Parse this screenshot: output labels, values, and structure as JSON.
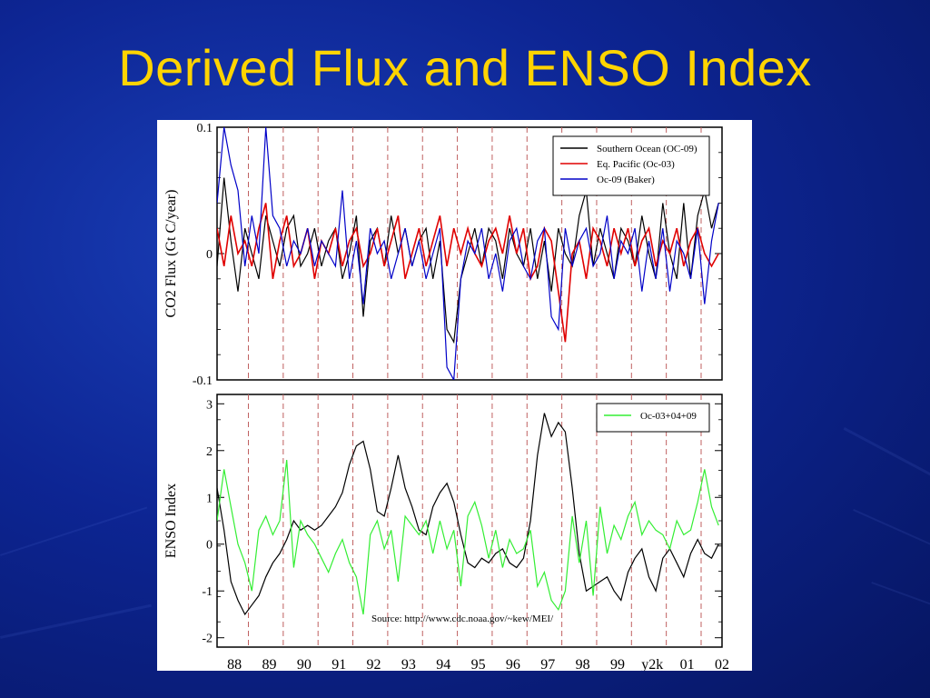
{
  "slide": {
    "title": "Derived Flux and ENSO Index"
  },
  "colors": {
    "title": "#ffd400",
    "background": "#0d2593",
    "southern_ocean": "#000000",
    "eq_pacific": "#e00000",
    "baker": "#0000c8",
    "oc_combined": "#33ee33",
    "enso": "#000000",
    "year_marker": "#c06060"
  },
  "chart_data": [
    {
      "type": "line",
      "ylabel": "CO2 Flux (Gt C/year)",
      "ylim": [
        -0.1,
        0.1
      ],
      "xlim": [
        1987.5,
        2002.0
      ],
      "yticks": [
        {
          "v": 0.1,
          "label": "0.1"
        },
        {
          "v": 0,
          "label": "0"
        },
        {
          "v": -0.1,
          "label": "-0.1"
        }
      ],
      "legend_position": "top-right",
      "year_markers": [
        1988.4,
        1989.4,
        1990.4,
        1991.4,
        1992.4,
        1993.4,
        1994.4,
        1995.4,
        1996.4,
        1997.4,
        1998.4,
        1999.4,
        2000.4,
        2001.4
      ],
      "series": [
        {
          "name": "Southern Ocean (OC-09)",
          "color": "#000000",
          "x": [
            1987.5,
            1987.7,
            1987.9,
            1988.1,
            1988.3,
            1988.5,
            1988.7,
            1988.9,
            1989.1,
            1989.3,
            1989.5,
            1989.7,
            1989.9,
            1990.1,
            1990.3,
            1990.5,
            1990.7,
            1990.9,
            1991.1,
            1991.3,
            1991.5,
            1991.7,
            1991.9,
            1992.1,
            1992.3,
            1992.5,
            1992.7,
            1992.9,
            1993.1,
            1993.3,
            1993.5,
            1993.7,
            1993.9,
            1994.1,
            1994.3,
            1994.5,
            1994.7,
            1994.9,
            1995.1,
            1995.3,
            1995.5,
            1995.7,
            1995.9,
            1996.1,
            1996.3,
            1996.5,
            1996.7,
            1996.9,
            1997.1,
            1997.3,
            1997.5,
            1997.7,
            1997.9,
            1998.1,
            1998.3,
            1998.5,
            1998.7,
            1998.9,
            1999.1,
            1999.3,
            1999.5,
            1999.7,
            1999.9,
            2000.1,
            2000.3,
            2000.5,
            2000.7,
            2000.9,
            2001.1,
            2001.3,
            2001.5,
            2001.7,
            2001.9
          ],
          "values": [
            -0.01,
            0.06,
            0.01,
            -0.03,
            0.02,
            0.0,
            -0.02,
            0.03,
            0.01,
            -0.01,
            0.02,
            0.03,
            -0.01,
            0.0,
            0.02,
            -0.01,
            0.01,
            0.02,
            -0.02,
            0.0,
            0.03,
            -0.05,
            0.01,
            0.02,
            -0.01,
            0.03,
            0.0,
            0.02,
            -0.01,
            0.01,
            0.02,
            -0.02,
            0.01,
            -0.06,
            -0.07,
            -0.02,
            0.0,
            0.02,
            -0.01,
            0.02,
            0.01,
            -0.02,
            0.02,
            0.0,
            -0.01,
            0.02,
            -0.02,
            0.01,
            -0.03,
            0.02,
            0.0,
            -0.01,
            0.03,
            0.05,
            -0.01,
            0.02,
            0.0,
            -0.02,
            0.02,
            0.01,
            -0.01,
            0.03,
            0.0,
            -0.02,
            0.04,
            0.0,
            -0.02,
            0.04,
            -0.02,
            0.03,
            0.05,
            0.02,
            0.04
          ]
        },
        {
          "name": "Eq. Pacific (Oc-03)",
          "color": "#e00000",
          "x": [
            1987.5,
            1987.7,
            1987.9,
            1988.1,
            1988.3,
            1988.5,
            1988.7,
            1988.9,
            1989.1,
            1989.3,
            1989.5,
            1989.7,
            1989.9,
            1990.1,
            1990.3,
            1990.5,
            1990.7,
            1990.9,
            1991.1,
            1991.3,
            1991.5,
            1991.7,
            1991.9,
            1992.1,
            1992.3,
            1992.5,
            1992.7,
            1992.9,
            1993.1,
            1993.3,
            1993.5,
            1993.7,
            1993.9,
            1994.1,
            1994.3,
            1994.5,
            1994.7,
            1994.9,
            1995.1,
            1995.3,
            1995.5,
            1995.7,
            1995.9,
            1996.1,
            1996.3,
            1996.5,
            1996.7,
            1996.9,
            1997.1,
            1997.3,
            1997.5,
            1997.7,
            1997.9,
            1998.1,
            1998.3,
            1998.5,
            1998.7,
            1998.9,
            1999.1,
            1999.3,
            1999.5,
            1999.7,
            1999.9,
            2000.1,
            2000.3,
            2000.5,
            2000.7,
            2000.9,
            2001.1,
            2001.3,
            2001.5,
            2001.7,
            2001.9
          ],
          "values": [
            0.02,
            -0.01,
            0.03,
            0.0,
            0.01,
            -0.01,
            0.02,
            0.04,
            -0.02,
            0.01,
            0.03,
            -0.01,
            0.0,
            0.02,
            -0.02,
            0.01,
            0.0,
            0.02,
            -0.01,
            0.01,
            0.02,
            -0.01,
            0.0,
            0.02,
            -0.01,
            0.01,
            0.03,
            -0.02,
            0.0,
            0.02,
            -0.01,
            0.01,
            0.03,
            -0.01,
            0.02,
            0.0,
            0.02,
            0.0,
            -0.01,
            0.01,
            0.02,
            0.0,
            0.03,
            0.0,
            0.02,
            -0.02,
            -0.01,
            0.02,
            0.01,
            -0.03,
            -0.07,
            0.0,
            0.01,
            -0.02,
            0.02,
            0.01,
            -0.01,
            0.02,
            0.0,
            0.02,
            -0.01,
            0.01,
            0.02,
            -0.01,
            0.01,
            0.0,
            0.02,
            -0.01,
            0.01,
            0.02,
            0.0,
            -0.01,
            0.0
          ]
        },
        {
          "name": "Oc-09 (Baker)",
          "color": "#0000c8",
          "x": [
            1987.5,
            1987.7,
            1987.9,
            1988.1,
            1988.3,
            1988.5,
            1988.7,
            1988.9,
            1989.1,
            1989.3,
            1989.5,
            1989.7,
            1989.9,
            1990.1,
            1990.3,
            1990.5,
            1990.7,
            1990.9,
            1991.1,
            1991.3,
            1991.5,
            1991.7,
            1991.9,
            1992.1,
            1992.3,
            1992.5,
            1992.7,
            1992.9,
            1993.1,
            1993.3,
            1993.5,
            1993.7,
            1993.9,
            1994.1,
            1994.3,
            1994.5,
            1994.7,
            1994.9,
            1995.1,
            1995.3,
            1995.5,
            1995.7,
            1995.9,
            1996.1,
            1996.3,
            1996.5,
            1996.7,
            1996.9,
            1997.1,
            1997.3,
            1997.5,
            1997.7,
            1997.9,
            1998.1,
            1998.3,
            1998.5,
            1998.7,
            1998.9,
            1999.1,
            1999.3,
            1999.5,
            1999.7,
            1999.9,
            2000.1,
            2000.3,
            2000.5,
            2000.7,
            2000.9,
            2001.1,
            2001.3,
            2001.5,
            2001.7,
            2001.9
          ],
          "values": [
            0.04,
            0.1,
            0.07,
            0.05,
            -0.01,
            0.03,
            0.0,
            0.1,
            0.03,
            0.02,
            -0.01,
            0.01,
            0.0,
            0.02,
            -0.01,
            0.01,
            0.0,
            -0.01,
            0.05,
            -0.02,
            0.01,
            -0.04,
            0.02,
            0.0,
            0.01,
            -0.02,
            0.0,
            0.02,
            -0.01,
            0.01,
            -0.02,
            0.0,
            0.02,
            -0.09,
            -0.1,
            -0.02,
            0.01,
            0.0,
            0.02,
            -0.02,
            0.0,
            -0.03,
            0.01,
            0.02,
            -0.01,
            -0.02,
            0.01,
            0.02,
            -0.05,
            -0.06,
            0.02,
            -0.01,
            0.01,
            0.02,
            -0.01,
            0.0,
            0.03,
            -0.02,
            0.01,
            0.0,
            0.02,
            -0.03,
            0.01,
            -0.02,
            0.02,
            -0.03,
            0.01,
            0.0,
            -0.02,
            0.02,
            -0.04,
            0.01,
            0.04
          ]
        }
      ]
    },
    {
      "type": "line",
      "ylabel": "ENSO Index",
      "ylim": [
        -2.2,
        3.2
      ],
      "xlim": [
        1987.5,
        2002.0
      ],
      "yticks": [
        {
          "v": 3,
          "label": "3"
        },
        {
          "v": 2,
          "label": "2"
        },
        {
          "v": 1,
          "label": "1"
        },
        {
          "v": 0,
          "label": "0"
        },
        {
          "v": -1,
          "label": "-1"
        },
        {
          "v": -2,
          "label": "-2"
        }
      ],
      "xticks": [
        {
          "v": 1988,
          "label": "88"
        },
        {
          "v": 1989,
          "label": "89"
        },
        {
          "v": 1990,
          "label": "90"
        },
        {
          "v": 1991,
          "label": "91"
        },
        {
          "v": 1992,
          "label": "92"
        },
        {
          "v": 1993,
          "label": "93"
        },
        {
          "v": 1994,
          "label": "94"
        },
        {
          "v": 1995,
          "label": "95"
        },
        {
          "v": 1996,
          "label": "96"
        },
        {
          "v": 1997,
          "label": "97"
        },
        {
          "v": 1998,
          "label": "98"
        },
        {
          "v": 1999,
          "label": "99"
        },
        {
          "v": 2000,
          "label": "y2k"
        },
        {
          "v": 2001,
          "label": "01"
        },
        {
          "v": 2002,
          "label": "02"
        }
      ],
      "legend_position": "top-right",
      "annotation": "Source: http://www.cdc.noaa.gov/~kew/MEI/",
      "year_markers": [
        1988.4,
        1989.4,
        1990.4,
        1991.4,
        1992.4,
        1993.4,
        1994.4,
        1995.4,
        1996.4,
        1997.4,
        1998.4,
        1999.4,
        2000.4,
        2001.4
      ],
      "series": [
        {
          "name": "",
          "color": "#000000",
          "x": [
            1987.5,
            1987.7,
            1987.9,
            1988.1,
            1988.3,
            1988.5,
            1988.7,
            1988.9,
            1989.1,
            1989.3,
            1989.5,
            1989.7,
            1989.9,
            1990.1,
            1990.3,
            1990.5,
            1990.7,
            1990.9,
            1991.1,
            1991.3,
            1991.5,
            1991.7,
            1991.9,
            1992.1,
            1992.3,
            1992.5,
            1992.7,
            1992.9,
            1993.1,
            1993.3,
            1993.5,
            1993.7,
            1993.9,
            1994.1,
            1994.3,
            1994.5,
            1994.7,
            1994.9,
            1995.1,
            1995.3,
            1995.5,
            1995.7,
            1995.9,
            1996.1,
            1996.3,
            1996.5,
            1996.7,
            1996.9,
            1997.1,
            1997.3,
            1997.5,
            1997.7,
            1997.9,
            1998.1,
            1998.3,
            1998.5,
            1998.7,
            1998.9,
            1999.1,
            1999.3,
            1999.5,
            1999.7,
            1999.9,
            2000.1,
            2000.3,
            2000.5,
            2000.7,
            2000.9,
            2001.1,
            2001.3,
            2001.5,
            2001.7,
            2001.9
          ],
          "values": [
            1.2,
            0.3,
            -0.8,
            -1.2,
            -1.5,
            -1.3,
            -1.1,
            -0.7,
            -0.4,
            -0.2,
            0.1,
            0.5,
            0.3,
            0.4,
            0.3,
            0.4,
            0.6,
            0.8,
            1.1,
            1.7,
            2.1,
            2.2,
            1.6,
            0.7,
            0.6,
            1.2,
            1.9,
            1.2,
            0.8,
            0.3,
            0.2,
            0.8,
            1.1,
            1.3,
            0.9,
            0.2,
            -0.4,
            -0.5,
            -0.3,
            -0.4,
            -0.2,
            -0.1,
            -0.4,
            -0.5,
            -0.3,
            0.5,
            1.9,
            2.8,
            2.3,
            2.6,
            2.4,
            1.2,
            -0.2,
            -1.0,
            -0.9,
            -0.8,
            -0.7,
            -1.0,
            -1.2,
            -0.6,
            -0.3,
            -0.1,
            -0.7,
            -1.0,
            -0.3,
            -0.1,
            -0.4,
            -0.7,
            -0.2,
            0.1,
            -0.2,
            -0.3,
            0.0
          ]
        },
        {
          "name": "Oc-03+04+09",
          "color": "#33ee33",
          "x": [
            1987.5,
            1987.7,
            1987.9,
            1988.1,
            1988.3,
            1988.5,
            1988.7,
            1988.9,
            1989.1,
            1989.3,
            1989.5,
            1989.7,
            1989.9,
            1990.1,
            1990.3,
            1990.5,
            1990.7,
            1990.9,
            1991.1,
            1991.3,
            1991.5,
            1991.7,
            1991.9,
            1992.1,
            1992.3,
            1992.5,
            1992.7,
            1992.9,
            1993.1,
            1993.3,
            1993.5,
            1993.7,
            1993.9,
            1994.1,
            1994.3,
            1994.5,
            1994.7,
            1994.9,
            1995.1,
            1995.3,
            1995.5,
            1995.7,
            1995.9,
            1996.1,
            1996.3,
            1996.5,
            1996.7,
            1996.9,
            1997.1,
            1997.3,
            1997.5,
            1997.7,
            1997.9,
            1998.1,
            1998.3,
            1998.5,
            1998.7,
            1998.9,
            1999.1,
            1999.3,
            1999.5,
            1999.7,
            1999.9,
            2000.1,
            2000.3,
            2000.5,
            2000.7,
            2000.9,
            2001.1,
            2001.3,
            2001.5,
            2001.7,
            2001.9
          ],
          "values": [
            0.5,
            1.6,
            0.8,
            0.0,
            -0.4,
            -1.0,
            0.3,
            0.6,
            0.2,
            0.5,
            1.8,
            -0.5,
            0.5,
            0.2,
            0.0,
            -0.3,
            -0.6,
            -0.2,
            0.1,
            -0.4,
            -0.7,
            -1.5,
            0.2,
            0.5,
            -0.1,
            0.3,
            -0.8,
            0.6,
            0.4,
            0.2,
            0.5,
            -0.2,
            0.5,
            -0.1,
            0.3,
            -0.9,
            0.6,
            0.9,
            0.4,
            -0.3,
            0.3,
            -0.5,
            0.1,
            -0.2,
            -0.1,
            0.3,
            -0.9,
            -0.6,
            -1.2,
            -1.4,
            -1.0,
            0.6,
            -0.4,
            0.5,
            -1.1,
            0.8,
            -0.2,
            0.4,
            0.1,
            0.6,
            0.9,
            0.2,
            0.5,
            0.3,
            0.2,
            -0.1,
            0.5,
            0.2,
            0.3,
            0.9,
            1.6,
            0.8,
            0.4
          ]
        }
      ]
    }
  ]
}
